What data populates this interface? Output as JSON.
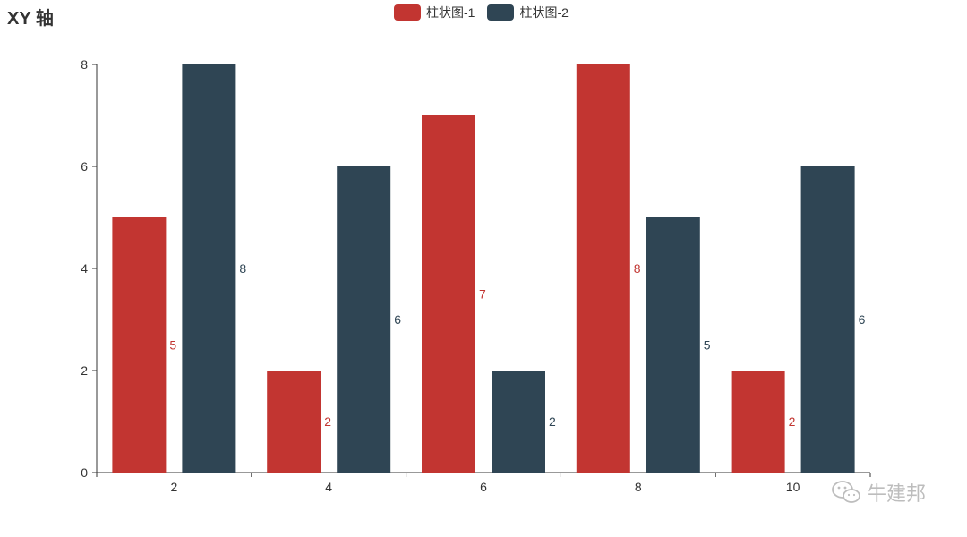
{
  "chart_data": {
    "type": "bar",
    "title": "XY 轴",
    "categories": [
      "2",
      "4",
      "6",
      "8",
      "10"
    ],
    "series": [
      {
        "name": "柱状图-1",
        "values": [
          5,
          2,
          7,
          8,
          2
        ],
        "color": "#c23531"
      },
      {
        "name": "柱状图-2",
        "values": [
          8,
          6,
          2,
          5,
          6
        ],
        "color": "#2f4554"
      }
    ],
    "yticks": [
      "0",
      "2",
      "4",
      "6",
      "8"
    ],
    "ylim": [
      0,
      8
    ],
    "grid": false,
    "legend_position": "top-center"
  },
  "watermark": {
    "text": "牛建邦",
    "icon": "wechat-icon"
  }
}
